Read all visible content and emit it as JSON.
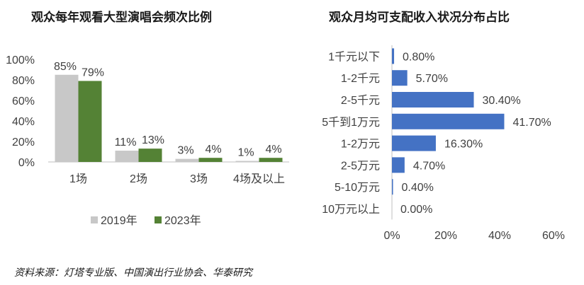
{
  "chart_data": [
    {
      "type": "bar",
      "title": "观众每年观看大型演唱会频次比例",
      "categories": [
        "1场",
        "2场",
        "3场",
        "4场及以上"
      ],
      "series": [
        {
          "name": "2019年",
          "values": [
            85,
            11,
            3,
            1
          ],
          "labels": [
            "85%",
            "11%",
            "3%",
            "1%"
          ],
          "color": "#c8c8c8"
        },
        {
          "name": "2023年",
          "values": [
            79,
            13,
            4,
            4
          ],
          "labels": [
            "79%",
            "13%",
            "4%",
            "4%"
          ],
          "color": "#548235"
        }
      ],
      "ylim": [
        0,
        100
      ],
      "yticks": [
        0,
        20,
        40,
        60,
        80,
        100
      ],
      "ytick_labels": [
        "0%",
        "20%",
        "40%",
        "60%",
        "80%",
        "100%"
      ],
      "legend_position": "bottom",
      "grid": false
    },
    {
      "type": "bar",
      "orientation": "horizontal",
      "title": "观众月均可支配收入状况分布占比",
      "categories": [
        "1千元以下",
        "1-2千元",
        "2-5千元",
        "5千到1万元",
        "1-2万元",
        "2-5万元",
        "5-10万元",
        "10万元以上"
      ],
      "values": [
        0.8,
        5.7,
        30.4,
        41.7,
        16.3,
        4.7,
        0.4,
        0.0
      ],
      "labels": [
        "0.80%",
        "5.70%",
        "30.40%",
        "41.70%",
        "16.30%",
        "4.70%",
        "0.40%",
        "0.00%"
      ],
      "color": "#4472c4",
      "xlim": [
        0,
        60
      ],
      "xticks": [
        0,
        20,
        40,
        60
      ],
      "xtick_labels": [
        "0%",
        "20%",
        "40%",
        "60%"
      ],
      "grid": false
    }
  ],
  "footer": {
    "source": "资料来源：灯塔专业版、中国演出行业协会、华泰研究"
  }
}
